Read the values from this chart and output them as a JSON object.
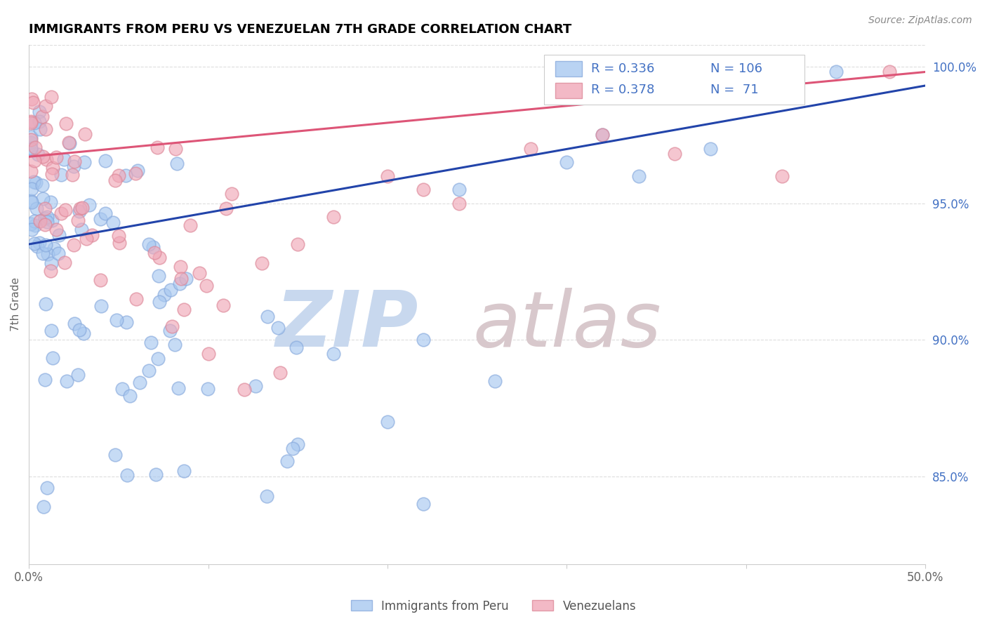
{
  "title": "IMMIGRANTS FROM PERU VS VENEZUELAN 7TH GRADE CORRELATION CHART",
  "source_text": "Source: ZipAtlas.com",
  "ylabel": "7th Grade",
  "xlim": [
    0.0,
    0.5
  ],
  "ylim": [
    0.818,
    1.008
  ],
  "x_ticks": [
    0.0,
    0.1,
    0.2,
    0.3,
    0.4,
    0.5
  ],
  "x_tick_labels": [
    "0.0%",
    "",
    "",
    "",
    "",
    "50.0%"
  ],
  "y_ticks_right": [
    0.85,
    0.9,
    0.95,
    1.0
  ],
  "y_tick_labels_right": [
    "85.0%",
    "90.0%",
    "95.0%",
    "100.0%"
  ],
  "blue_color": "#a8c8f0",
  "pink_color": "#f0a8b8",
  "blue_edge_color": "#88aadd",
  "pink_edge_color": "#dd8899",
  "blue_line_color": "#2244aa",
  "pink_line_color": "#dd5577",
  "legend_title_color": "#333333",
  "legend_value_color": "#4472c4",
  "watermark_zip_color": "#c8d8ee",
  "watermark_atlas_color": "#d8c8cc",
  "right_axis_color": "#4472c4",
  "grid_color": "#dddddd",
  "source_color": "#888888",
  "ylabel_color": "#666666",
  "xtick_color": "#666666",
  "bottom_legend_color": "#555555"
}
